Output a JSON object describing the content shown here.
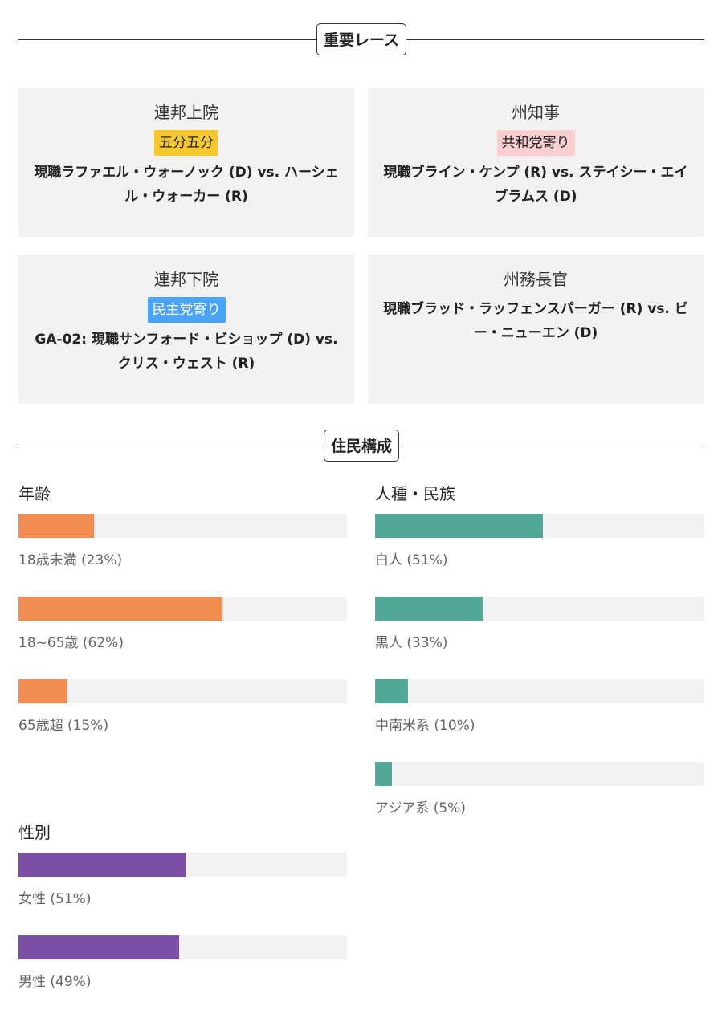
{
  "key_races": {
    "heading": "重要レース",
    "cards": [
      {
        "office": "連邦上院",
        "rating": "五分五分",
        "rating_color": "#f7c72b",
        "matchup": "現職ラファエル・ウォーノック (D) vs. ハーシェル・ウォーカー (R)"
      },
      {
        "office": "州知事",
        "rating": "共和党寄り",
        "rating_color": "#f9cfcf",
        "matchup": "現職ブライン・ケンプ (R) vs. ステイシー・エイブラムス (D)"
      },
      {
        "office": "連邦下院",
        "rating": "民主党寄り",
        "rating_color": "#4aa3f5",
        "matchup": "GA-02: 現職サンフォード・ビショップ (D) vs. クリス・ウェスト (R)"
      },
      {
        "office": "州務長官",
        "rating": "",
        "rating_color": "",
        "matchup": "現職ブラッド・ラッフェンスパーガー (R) vs. ビー・ニューエン (D)"
      }
    ]
  },
  "demographics": {
    "heading": "住民構成",
    "age": {
      "title": "年齢",
      "color": "#f28c52",
      "items": [
        {
          "label": "18歳未満 (23%)",
          "value": 0.23
        },
        {
          "label": "18~65歳 (62%)",
          "value": 0.62
        },
        {
          "label": "65歳超 (15%)",
          "value": 0.15
        }
      ]
    },
    "race": {
      "title": "人種・民族",
      "color": "#52a898",
      "items": [
        {
          "label": "白人 (51%)",
          "value": 0.51
        },
        {
          "label": "黒人 (33%)",
          "value": 0.33
        },
        {
          "label": "中南米系 (10%)",
          "value": 0.1
        },
        {
          "label": "アジア系 (5%)",
          "value": 0.05
        }
      ]
    },
    "sex": {
      "title": "性別",
      "color": "#7b4fa6",
      "items": [
        {
          "label": "女性 (51%)",
          "value": 0.51
        },
        {
          "label": "男性 (49%)",
          "value": 0.49
        }
      ]
    }
  }
}
